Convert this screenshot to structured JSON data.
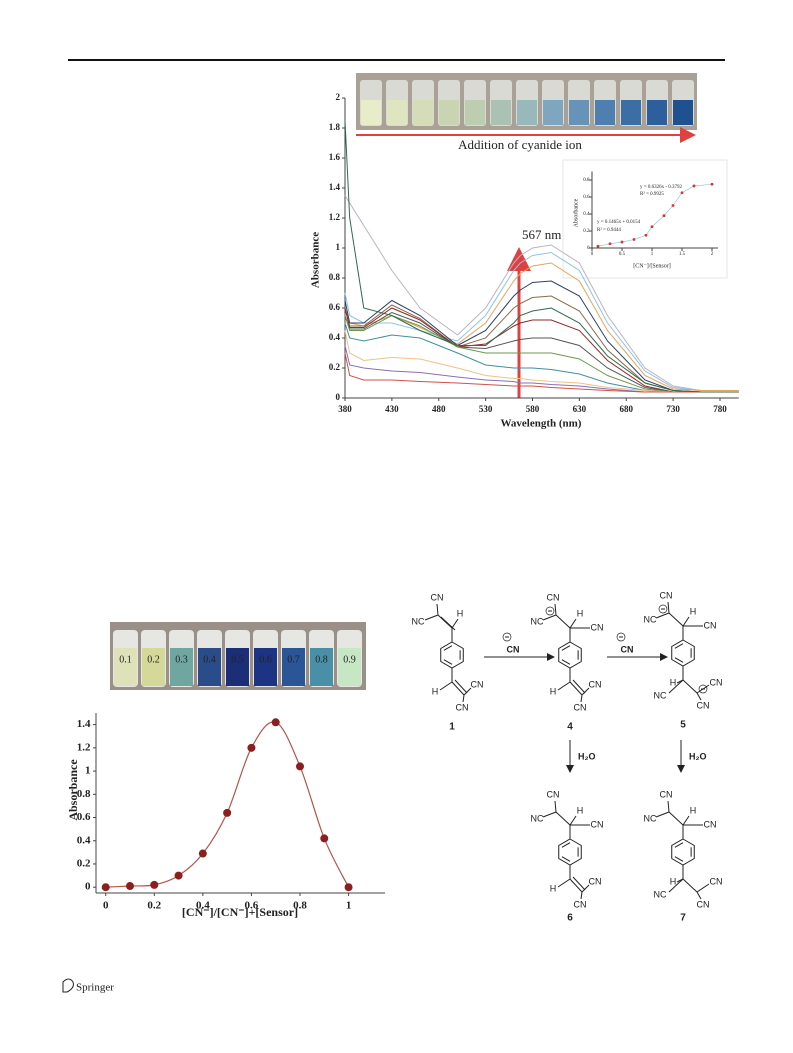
{
  "chart_data": [
    {
      "type": "line",
      "x_label": "Wavelength (nm)",
      "y_label": "Absorbance",
      "xlim": [
        380,
        800
      ],
      "xticks": [
        380,
        430,
        480,
        530,
        580,
        630,
        680,
        730,
        780
      ],
      "ylim": [
        0,
        2
      ],
      "yticks": [
        0,
        0.2,
        0.4,
        0.6,
        0.8,
        1,
        1.2,
        1.4,
        1.6,
        1.8,
        2
      ],
      "x": [
        380,
        385,
        400,
        430,
        460,
        500,
        530,
        560,
        567,
        580,
        600,
        630,
        660,
        700,
        730,
        760,
        800
      ],
      "series": [
        {
          "color": "#b9b3c8",
          "values": [
            1.35,
            1.3,
            1.15,
            0.85,
            0.6,
            0.42,
            0.6,
            0.9,
            0.95,
            1.0,
            1.02,
            0.9,
            0.55,
            0.2,
            0.08,
            0.05,
            0.05
          ]
        },
        {
          "color": "#8fc3e0",
          "values": [
            0.7,
            0.55,
            0.5,
            0.5,
            0.45,
            0.38,
            0.55,
            0.85,
            0.9,
            0.95,
            0.97,
            0.85,
            0.5,
            0.18,
            0.07,
            0.05,
            0.05
          ]
        },
        {
          "color": "#e8a45a",
          "values": [
            0.6,
            0.5,
            0.48,
            0.55,
            0.47,
            0.36,
            0.5,
            0.78,
            0.83,
            0.88,
            0.9,
            0.78,
            0.45,
            0.15,
            0.06,
            0.05,
            0.05
          ]
        },
        {
          "color": "#2e3f66",
          "values": [
            0.65,
            0.5,
            0.5,
            0.65,
            0.55,
            0.35,
            0.45,
            0.68,
            0.72,
            0.77,
            0.78,
            0.68,
            0.38,
            0.12,
            0.05,
            0.04,
            0.04
          ]
        },
        {
          "color": "#8a6a4a",
          "values": [
            0.6,
            0.48,
            0.48,
            0.62,
            0.53,
            0.34,
            0.4,
            0.6,
            0.63,
            0.67,
            0.68,
            0.58,
            0.32,
            0.1,
            0.05,
            0.04,
            0.04
          ]
        },
        {
          "color": "#8e2b2b",
          "values": [
            0.6,
            0.47,
            0.47,
            0.6,
            0.52,
            0.34,
            0.36,
            0.48,
            0.5,
            0.52,
            0.52,
            0.45,
            0.25,
            0.08,
            0.04,
            0.04,
            0.04
          ]
        },
        {
          "color": "#555555",
          "values": [
            0.55,
            0.46,
            0.46,
            0.57,
            0.5,
            0.34,
            0.33,
            0.38,
            0.39,
            0.4,
            0.4,
            0.35,
            0.2,
            0.07,
            0.04,
            0.04,
            0.04
          ]
        },
        {
          "color": "#6e9a4a",
          "values": [
            0.55,
            0.45,
            0.45,
            0.55,
            0.48,
            0.34,
            0.3,
            0.3,
            0.3,
            0.3,
            0.3,
            0.26,
            0.15,
            0.06,
            0.04,
            0.04,
            0.04
          ]
        },
        {
          "color": "#3f8fa0",
          "values": [
            0.5,
            0.4,
            0.38,
            0.42,
            0.4,
            0.3,
            0.22,
            0.2,
            0.2,
            0.2,
            0.19,
            0.16,
            0.1,
            0.05,
            0.04,
            0.04,
            0.04
          ]
        },
        {
          "color": "#f0c08a",
          "values": [
            0.45,
            0.3,
            0.25,
            0.27,
            0.26,
            0.2,
            0.15,
            0.13,
            0.13,
            0.12,
            0.11,
            0.1,
            0.07,
            0.05,
            0.04,
            0.04,
            0.04
          ]
        },
        {
          "color": "#8a6fb0",
          "values": [
            0.35,
            0.22,
            0.2,
            0.18,
            0.17,
            0.14,
            0.12,
            0.11,
            0.1,
            0.1,
            0.09,
            0.08,
            0.06,
            0.04,
            0.04,
            0.04,
            0.04
          ]
        },
        {
          "color": "#d0504a",
          "values": [
            0.3,
            0.15,
            0.12,
            0.12,
            0.11,
            0.1,
            0.09,
            0.08,
            0.08,
            0.08,
            0.07,
            0.06,
            0.05,
            0.04,
            0.04,
            0.04,
            0.04
          ]
        },
        {
          "color": "#2f6b4f",
          "values": [
            1.85,
            1.2,
            0.6,
            0.55,
            0.45,
            0.35,
            0.35,
            0.5,
            0.55,
            0.58,
            0.6,
            0.5,
            0.28,
            0.1,
            0.05,
            0.04,
            0.04
          ]
        }
      ],
      "annotations": [
        "567 nm",
        "Addition of cyanide ion"
      ]
    },
    {
      "type": "scatter",
      "x_label": "[CN⁻]/[Sensor]",
      "y_label": "Absorbance",
      "xlim": [
        0,
        2.1
      ],
      "xticks": [
        0,
        0.5,
        1,
        1.5,
        2
      ],
      "ylim": [
        0,
        0.9
      ],
      "yticks": [
        0,
        0.2,
        0.4,
        0.6,
        0.8
      ],
      "x": [
        0.1,
        0.3,
        0.5,
        0.7,
        0.9,
        1.0,
        1.2,
        1.35,
        1.5,
        1.7,
        2.0
      ],
      "values": [
        0.02,
        0.05,
        0.07,
        0.1,
        0.15,
        0.25,
        0.38,
        0.5,
        0.65,
        0.73,
        0.75
      ],
      "color": "#e0302c",
      "annotations": [
        "y = 0.6326x - 0.3792",
        "R² = 0.9925",
        "y = 0.1465x + 0.0154",
        "R² = 0.9444"
      ]
    },
    {
      "type": "line",
      "markers": true,
      "x_label": "[CN⁻]/[CN⁻]+[Sensor]",
      "y_label": "Absorbance",
      "xlim": [
        -0.04,
        1.15
      ],
      "xticks": [
        0,
        0.2,
        0.4,
        0.6,
        0.8,
        1
      ],
      "ylim": [
        -0.05,
        1.5
      ],
      "yticks": [
        0,
        0.2,
        0.4,
        0.6,
        0.8,
        1,
        1.2,
        1.4
      ],
      "x": [
        0,
        0.1,
        0.2,
        0.3,
        0.4,
        0.5,
        0.6,
        0.7,
        0.8,
        0.9,
        1
      ],
      "series": [
        {
          "color": "#b5534a",
          "values": [
            0,
            0.01,
            0.02,
            0.1,
            0.29,
            0.64,
            1.2,
            1.42,
            1.04,
            0.42,
            0
          ]
        }
      ],
      "marker_color": "#8b1e1e"
    }
  ],
  "photo_labels": [
    "0.1",
    "0.2",
    "0.3",
    "0.4",
    "0.5",
    "0.6",
    "0.7",
    "0.8",
    "0.9"
  ],
  "scheme": {
    "compounds": [
      {
        "label": "1",
        "groups": [
          "CN",
          "NC",
          "H",
          "H",
          "CN",
          "CN"
        ]
      },
      {
        "label": "4",
        "groups": [
          "CN",
          "NC",
          "H",
          "CN",
          "H",
          "CN",
          "CN"
        ]
      },
      {
        "label": "5",
        "groups": [
          "CN",
          "NC",
          "H",
          "CN",
          "H",
          "NC",
          "CN",
          "CN"
        ]
      },
      {
        "label": "6",
        "groups": [
          "CN",
          "NC",
          "H",
          "CN",
          "H",
          "CN",
          "CN"
        ]
      },
      {
        "label": "7",
        "groups": [
          "CN",
          "NC",
          "H",
          "CN",
          "H",
          "NC",
          "CN",
          "CN"
        ]
      }
    ],
    "reagents": [
      "CN",
      "CN",
      "H₂O",
      "H₂O"
    ]
  },
  "footer": {
    "publisher": "Springer"
  }
}
